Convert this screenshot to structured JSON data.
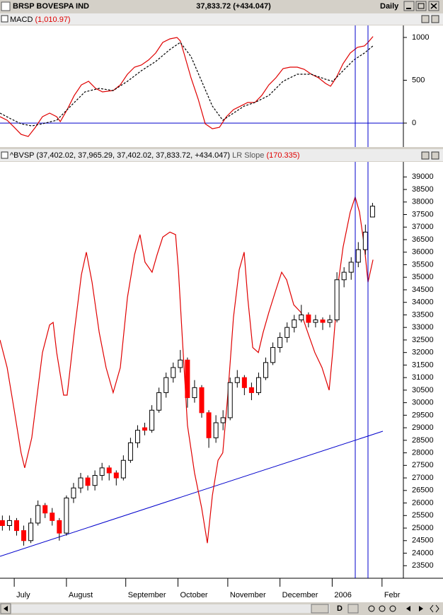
{
  "window": {
    "title": "BRSP BOVESPA IND",
    "quote": "37,833.72 (+434.047)",
    "period": "Daily",
    "toolbar": "D"
  },
  "chart_data": [
    {
      "type": "line",
      "title": "MACD",
      "value_label": "(1,010.97)",
      "xlim": [
        0,
        170
      ],
      "ylim": [
        -280,
        1140
      ],
      "yticks": [
        0,
        500,
        1000
      ],
      "reference_line": {
        "value": 0,
        "color": "#0000cc"
      },
      "series": [
        {
          "color": "#e00000",
          "style": "solid",
          "x": [
            0,
            3,
            6,
            8.9,
            11.9,
            14.9,
            17.9,
            20.9,
            23.9,
            25.4,
            28.3,
            31.3,
            34.3,
            37.3,
            40.3,
            43.2,
            47.7,
            50.7,
            53.7,
            56.7,
            59.6,
            62.6,
            65.6,
            68.6,
            71.6,
            74.6,
            76,
            77.5,
            80.5,
            83.5,
            86.5,
            89.5,
            92.5,
            95.4,
            98.4,
            101.4,
            104.4,
            107.4,
            110.3,
            113.3,
            116.3,
            119.3,
            122.3,
            125.3,
            128.2,
            131.2,
            134.2,
            137.2,
            139.3,
            141.7,
            144.6,
            147.6,
            150.6,
            153.6,
            155.1,
            157.2
          ],
          "values": [
            74,
            33,
            -50,
            -132,
            -157,
            -50,
            74,
            116,
            74,
            17,
            157,
            322,
            446,
            488,
            405,
            364,
            380,
            446,
            570,
            653,
            678,
            736,
            818,
            942,
            983,
            1000,
            959,
            818,
            529,
            281,
            -8,
            -66,
            -50,
            74,
            157,
            198,
            240,
            240,
            322,
            446,
            529,
            636,
            653,
            653,
            628,
            570,
            529,
            463,
            430,
            529,
            694,
            818,
            884,
            901,
            942,
            1011
          ]
        },
        {
          "color": "#000000",
          "style": "dashed",
          "x": [
            0,
            4.5,
            8.9,
            13.4,
            17.9,
            23.9,
            29.8,
            35.8,
            41.8,
            47.7,
            53.7,
            59.6,
            65.6,
            71.6,
            76,
            80.5,
            85,
            89.5,
            93.9,
            98.4,
            102.9,
            107.4,
            113.3,
            119.3,
            125.3,
            131.2,
            137.2,
            140.2,
            144.6,
            149.1,
            153.6,
            157.2
          ],
          "values": [
            116,
            50,
            -8,
            -33,
            -8,
            33,
            198,
            364,
            405,
            380,
            488,
            612,
            719,
            859,
            942,
            777,
            488,
            198,
            33,
            116,
            198,
            240,
            322,
            488,
            570,
            570,
            512,
            488,
            612,
            736,
            818,
            901
          ]
        }
      ]
    },
    {
      "type": "candlestick",
      "title": "^BVSP",
      "value_label": "(37,402.02, 37,965.29, 37,402.02, 37,833.72, +434.047)",
      "xlim": [
        0,
        170
      ],
      "ylim": [
        23000,
        39600
      ],
      "yticks": [
        23500,
        24000,
        24500,
        25000,
        25500,
        26000,
        26500,
        27000,
        27500,
        28000,
        28500,
        29000,
        29500,
        30000,
        30500,
        31000,
        31500,
        32000,
        32500,
        33000,
        33500,
        34000,
        34500,
        35000,
        35500,
        36000,
        36500,
        37000,
        37500,
        38000,
        38500,
        39000
      ],
      "xticks": [
        {
          "value": 6,
          "label": "July"
        },
        {
          "value": 28,
          "label": "August"
        },
        {
          "value": 53,
          "label": "September"
        },
        {
          "value": 75,
          "label": "October"
        },
        {
          "value": 96,
          "label": "November"
        },
        {
          "value": 118,
          "label": "December"
        },
        {
          "value": 140,
          "label": "2006"
        },
        {
          "value": 161,
          "label": "Febr"
        }
      ],
      "up_color": "#ffffff",
      "down_color": "#ff0000",
      "wick_color": "#000000",
      "x": [
        1,
        4,
        7,
        10,
        13,
        16,
        19,
        22,
        25,
        28,
        31,
        34,
        37,
        40,
        43,
        46,
        49,
        52,
        55,
        58,
        61,
        64,
        67,
        70,
        73,
        76,
        79,
        82,
        85,
        88,
        91,
        94,
        97,
        100,
        103,
        106,
        109,
        112,
        115,
        118,
        121,
        124,
        127,
        130,
        133,
        136,
        139,
        142,
        145,
        148,
        151,
        154,
        157
      ],
      "open": [
        25300,
        25100,
        25300,
        24900,
        24500,
        25200,
        25900,
        25600,
        25300,
        24800,
        26200,
        26600,
        27000,
        26700,
        27100,
        27400,
        27200,
        27000,
        27700,
        28400,
        29000,
        28900,
        29700,
        30400,
        31000,
        31400,
        31700,
        30200,
        30600,
        29600,
        28600,
        29200,
        29400,
        30800,
        31000,
        30600,
        30400,
        31000,
        31600,
        32200,
        32600,
        33000,
        33300,
        33500,
        33200,
        33300,
        33200,
        33300,
        34900,
        35200,
        35600,
        36100,
        37402.02
      ],
      "high": [
        25500,
        25500,
        25400,
        25100,
        25400,
        26100,
        26000,
        25800,
        25400,
        26300,
        26800,
        27200,
        27100,
        27300,
        27600,
        27500,
        27300,
        27900,
        28600,
        29100,
        29200,
        29900,
        30600,
        31200,
        31600,
        32100,
        31800,
        30900,
        30700,
        29700,
        29500,
        29700,
        31000,
        31300,
        31100,
        30800,
        31200,
        31800,
        32400,
        32800,
        33200,
        33500,
        33900,
        33600,
        33500,
        33400,
        33500,
        35200,
        35400,
        35800,
        36400,
        37100,
        37965.29
      ],
      "low": [
        24900,
        24900,
        24700,
        24300,
        24400,
        25100,
        25400,
        25100,
        24500,
        24700,
        26000,
        26400,
        26500,
        26500,
        26900,
        26900,
        26700,
        26900,
        27600,
        28200,
        28700,
        28800,
        29600,
        30200,
        30800,
        31200,
        29800,
        30000,
        29400,
        28200,
        28400,
        28900,
        29300,
        30600,
        30300,
        30100,
        30300,
        30900,
        31500,
        32000,
        32400,
        32800,
        33200,
        33000,
        33000,
        32900,
        33000,
        33200,
        34600,
        34900,
        35400,
        35900,
        37402.02
      ],
      "close": [
        25100,
        25300,
        24900,
        24500,
        25200,
        25900,
        25600,
        25300,
        24800,
        26200,
        26600,
        27000,
        26700,
        27100,
        27400,
        27200,
        27000,
        27700,
        28400,
        28900,
        28900,
        29700,
        30400,
        31000,
        31400,
        31700,
        30200,
        30600,
        29600,
        28600,
        29200,
        29400,
        30800,
        31000,
        30600,
        30400,
        31000,
        31600,
        32200,
        32600,
        33000,
        33300,
        33500,
        33200,
        33300,
        33200,
        33300,
        34900,
        35200,
        35600,
        36100,
        36800,
        37833.72
      ],
      "overlays": [
        {
          "name": "LR Slope",
          "value_label": "(170.335)",
          "color": "#e00000",
          "x": [
            0,
            3,
            6,
            8.9,
            10.4,
            13.4,
            17.9,
            20.9,
            22.4,
            23.9,
            26.8,
            28.3,
            31.3,
            34.3,
            36.4,
            38.8,
            41.8,
            44.7,
            47.7,
            50.7,
            53.7,
            56.7,
            59,
            61.1,
            64.1,
            66.2,
            68.6,
            71.6,
            74,
            75.2,
            76.9,
            79,
            82,
            85,
            87.4,
            89.5,
            91.9,
            93.9,
            96,
            98.4,
            100.8,
            102.9,
            104.4,
            106.5,
            108.9,
            110.9,
            113.3,
            116.3,
            118.7,
            120.8,
            123.8,
            126.8,
            129.7,
            132.7,
            135.7,
            138.7,
            140.2,
            142.6,
            144.6,
            147.6,
            149.7,
            151.5,
            153.6,
            155.1,
            157.2
          ],
          "values": [
            32500,
            31400,
            29700,
            28000,
            27400,
            28600,
            32000,
            33100,
            33200,
            32000,
            30300,
            30300,
            32800,
            35100,
            36000,
            34800,
            32800,
            31400,
            30400,
            31400,
            34200,
            35900,
            36700,
            35600,
            35200,
            35900,
            36600,
            36800,
            36700,
            35300,
            32500,
            29100,
            27200,
            25800,
            24400,
            26300,
            27700,
            28000,
            30300,
            33400,
            35300,
            36000,
            34200,
            32200,
            32000,
            32800,
            33600,
            34500,
            35200,
            34900,
            33900,
            33600,
            32800,
            32000,
            31400,
            30500,
            32000,
            34800,
            36200,
            37600,
            38200,
            37600,
            36200,
            34800,
            35700
          ]
        }
      ]
    }
  ]
}
